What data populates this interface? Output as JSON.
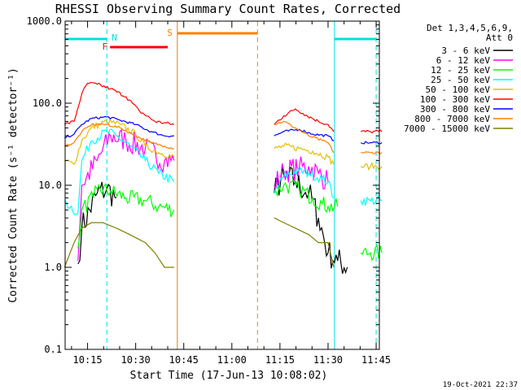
{
  "chart_data": {
    "type": "line",
    "title": "RHESSI Observing Summary Count Rates, Corrected",
    "xlabel": "Start Time (17-Jun-13 10:08:02)",
    "ylabel": "Corrected Count Rate (s⁻¹ detector⁻¹)",
    "yscale": "log",
    "ylim": [
      0.1,
      1000
    ],
    "xlim": [
      "10:08",
      "11:46"
    ],
    "x_ticks": [
      "10:15",
      "10:30",
      "10:45",
      "11:00",
      "11:15",
      "11:30",
      "11:45"
    ],
    "y_ticks": [
      "0.1",
      "1.0",
      "10.0",
      "100.0",
      "1000.0"
    ],
    "legend": {
      "title_lines": [
        "Det 1,3,4,5,6,9,",
        "Att 0"
      ],
      "position": "right"
    },
    "annotations": {
      "footer_date": "19-Oct-2021 22:37",
      "flags": [
        {
          "label": "N",
          "color": "#00e0e0",
          "start": "10:08",
          "end": "10:21"
        },
        {
          "label": "F",
          "color": "#ff0000",
          "start": "10:22",
          "end": "10:40"
        },
        {
          "label": "S",
          "color": "#ff7f00",
          "start": "10:43",
          "end": "11:08"
        },
        {
          "label": "",
          "color": "#00e0e0",
          "start": "11:32",
          "end": "11:45"
        }
      ],
      "vlines": [
        {
          "time": "10:08",
          "color": "#00e0e0",
          "style": "solid"
        },
        {
          "time": "10:21",
          "color": "#00e0e0",
          "style": "dashed"
        },
        {
          "time": "10:43",
          "color": "#e08000",
          "style": "solid"
        },
        {
          "time": "11:08",
          "color": "#ff7f00",
          "style": "dashed"
        },
        {
          "time": "11:32",
          "color": "#00e0e0",
          "style": "solid"
        },
        {
          "time": "11:45",
          "color": "#00e0e0",
          "style": "dashed"
        }
      ]
    },
    "series": [
      {
        "name": "3 - 6 keV",
        "color": "#000000",
        "noise": 0.35,
        "points": [
          [
            10.2,
            1.1
          ],
          [
            10.22,
            3
          ],
          [
            10.3,
            8
          ],
          [
            10.35,
            9
          ],
          [
            10.4,
            7
          ],
          [
            10.42,
            null
          ],
          [
            11.2,
            null
          ],
          [
            11.22,
            8
          ],
          [
            11.27,
            13
          ],
          [
            11.33,
            11
          ],
          [
            11.4,
            8
          ],
          [
            11.45,
            4
          ],
          [
            11.5,
            1.5
          ],
          [
            11.55,
            1.2
          ],
          [
            11.6,
            1
          ]
        ]
      },
      {
        "name": "6 - 12 keV",
        "color": "#ff00ff",
        "noise": 0.3,
        "points": [
          [
            10.2,
            1.2
          ],
          [
            10.22,
            10
          ],
          [
            10.3,
            20
          ],
          [
            10.37,
            40
          ],
          [
            10.45,
            35
          ],
          [
            10.55,
            28
          ],
          [
            10.65,
            20
          ],
          [
            10.7,
            20
          ],
          [
            10.72,
            null
          ],
          [
            11.2,
            null
          ],
          [
            11.22,
            10
          ],
          [
            11.27,
            15
          ],
          [
            11.35,
            16
          ],
          [
            11.4,
            17
          ],
          [
            11.45,
            14
          ],
          [
            11.5,
            11
          ],
          [
            11.55,
            null
          ]
        ]
      },
      {
        "name": "12 - 25 keV",
        "color": "#00ff00",
        "noise": 0.2,
        "points": [
          [
            10.2,
            1.7
          ],
          [
            10.22,
            5
          ],
          [
            10.28,
            7
          ],
          [
            10.3,
            9
          ],
          [
            10.37,
            8.5
          ],
          [
            10.45,
            7
          ],
          [
            10.55,
            6.5
          ],
          [
            10.62,
            5.5
          ],
          [
            10.7,
            5
          ],
          [
            10.72,
            null
          ],
          [
            11.2,
            null
          ],
          [
            11.22,
            8
          ],
          [
            11.27,
            10
          ],
          [
            11.35,
            9
          ],
          [
            11.42,
            7
          ],
          [
            11.47,
            6
          ],
          [
            11.5,
            5.5
          ],
          [
            11.55,
            5.5
          ],
          [
            11.6,
            null
          ],
          [
            11.67,
            1.5
          ],
          [
            11.72,
            1.5
          ],
          [
            11.78,
            1.5
          ],
          [
            11.8,
            null
          ]
        ]
      },
      {
        "name": "25 - 50 keV",
        "color": "#00ffff",
        "noise": 0.12,
        "points": [
          [
            10.13,
            6.5
          ],
          [
            10.2,
            4.5
          ],
          [
            10.22,
            20
          ],
          [
            10.27,
            35
          ],
          [
            10.35,
            45
          ],
          [
            10.4,
            40
          ],
          [
            10.47,
            30
          ],
          [
            10.55,
            20
          ],
          [
            10.62,
            14
          ],
          [
            10.7,
            11
          ],
          [
            10.72,
            null
          ],
          [
            11.2,
            null
          ],
          [
            11.22,
            8
          ],
          [
            11.27,
            13
          ],
          [
            11.35,
            15
          ],
          [
            11.4,
            14
          ],
          [
            11.47,
            12
          ],
          [
            11.5,
            11
          ],
          [
            11.53,
            7
          ],
          [
            11.55,
            null
          ],
          [
            11.67,
            6.5
          ],
          [
            11.72,
            6.5
          ],
          [
            11.78,
            6.5
          ],
          [
            11.8,
            null
          ]
        ]
      },
      {
        "name": "50 - 100 keV",
        "color": "#e0c000",
        "noise": 0.08,
        "points": [
          [
            10.13,
            20
          ],
          [
            10.18,
            18
          ],
          [
            10.22,
            35
          ],
          [
            10.27,
            50
          ],
          [
            10.35,
            60
          ],
          [
            10.42,
            55
          ],
          [
            10.5,
            42
          ],
          [
            10.55,
            30
          ],
          [
            10.62,
            25
          ],
          [
            10.7,
            22
          ],
          [
            10.72,
            null
          ],
          [
            11.2,
            null
          ],
          [
            11.22,
            28
          ],
          [
            11.27,
            30
          ],
          [
            11.35,
            28
          ],
          [
            11.42,
            26
          ],
          [
            11.5,
            22
          ],
          [
            11.53,
            18
          ],
          [
            11.55,
            null
          ],
          [
            11.67,
            17
          ],
          [
            11.72,
            17
          ],
          [
            11.78,
            17
          ],
          [
            11.8,
            null
          ]
        ]
      },
      {
        "name": "100 - 300 keV",
        "color": "#ff0000",
        "noise": 0.04,
        "points": [
          [
            10.13,
            55
          ],
          [
            10.18,
            60
          ],
          [
            10.22,
            130
          ],
          [
            10.25,
            175
          ],
          [
            10.3,
            170
          ],
          [
            10.37,
            150
          ],
          [
            10.45,
            120
          ],
          [
            10.52,
            80
          ],
          [
            10.6,
            60
          ],
          [
            10.7,
            55
          ],
          [
            10.72,
            null
          ],
          [
            11.2,
            null
          ],
          [
            11.22,
            55
          ],
          [
            11.27,
            70
          ],
          [
            11.33,
            85
          ],
          [
            11.37,
            75
          ],
          [
            11.45,
            60
          ],
          [
            11.5,
            55
          ],
          [
            11.53,
            45
          ],
          [
            11.55,
            null
          ],
          [
            11.67,
            45
          ],
          [
            11.72,
            45
          ],
          [
            11.78,
            45
          ],
          [
            11.8,
            null
          ]
        ]
      },
      {
        "name": "300 - 800 keV",
        "color": "#0000ff",
        "noise": 0.03,
        "points": [
          [
            10.13,
            38
          ],
          [
            10.18,
            42
          ],
          [
            10.22,
            55
          ],
          [
            10.27,
            65
          ],
          [
            10.35,
            68
          ],
          [
            10.42,
            62
          ],
          [
            10.5,
            55
          ],
          [
            10.58,
            45
          ],
          [
            10.65,
            40
          ],
          [
            10.7,
            40
          ],
          [
            10.72,
            null
          ],
          [
            11.2,
            null
          ],
          [
            11.22,
            40
          ],
          [
            11.27,
            45
          ],
          [
            11.35,
            48
          ],
          [
            11.42,
            42
          ],
          [
            11.5,
            40
          ],
          [
            11.53,
            35
          ],
          [
            11.55,
            null
          ],
          [
            11.67,
            33
          ],
          [
            11.72,
            33
          ],
          [
            11.78,
            33
          ],
          [
            11.8,
            null
          ]
        ]
      },
      {
        "name": "800 - 7000 keV",
        "color": "#ff7f00",
        "noise": 0.03,
        "points": [
          [
            10.13,
            30
          ],
          [
            10.18,
            33
          ],
          [
            10.22,
            45
          ],
          [
            10.27,
            55
          ],
          [
            10.35,
            55
          ],
          [
            10.42,
            50
          ],
          [
            10.5,
            40
          ],
          [
            10.58,
            33
          ],
          [
            10.65,
            30
          ],
          [
            10.7,
            28
          ],
          [
            10.72,
            null
          ],
          [
            11.2,
            null
          ],
          [
            11.22,
            55
          ],
          [
            11.27,
            60
          ],
          [
            11.33,
            50
          ],
          [
            11.4,
            40
          ],
          [
            11.47,
            35
          ],
          [
            11.5,
            33
          ],
          [
            11.53,
            25
          ],
          [
            11.55,
            null
          ],
          [
            11.67,
            25
          ],
          [
            11.72,
            25
          ],
          [
            11.78,
            25
          ],
          [
            11.8,
            null
          ]
        ]
      },
      {
        "name": "7000 - 15000 keV",
        "color": "#7f7f00",
        "noise": 0.0,
        "points": [
          [
            10.13,
            1
          ],
          [
            10.18,
            2
          ],
          [
            10.22,
            3
          ],
          [
            10.27,
            3.5
          ],
          [
            10.33,
            3.5
          ],
          [
            10.4,
            3
          ],
          [
            10.47,
            2.5
          ],
          [
            10.55,
            2
          ],
          [
            10.6,
            1.5
          ],
          [
            10.65,
            1
          ],
          [
            10.7,
            1
          ],
          [
            10.72,
            null
          ],
          [
            11.2,
            null
          ],
          [
            11.22,
            4
          ],
          [
            11.27,
            3.5
          ],
          [
            11.33,
            3
          ],
          [
            11.4,
            2.5
          ],
          [
            11.45,
            2
          ],
          [
            11.5,
            2
          ],
          [
            11.53,
            1
          ],
          [
            11.55,
            null
          ]
        ]
      }
    ]
  }
}
